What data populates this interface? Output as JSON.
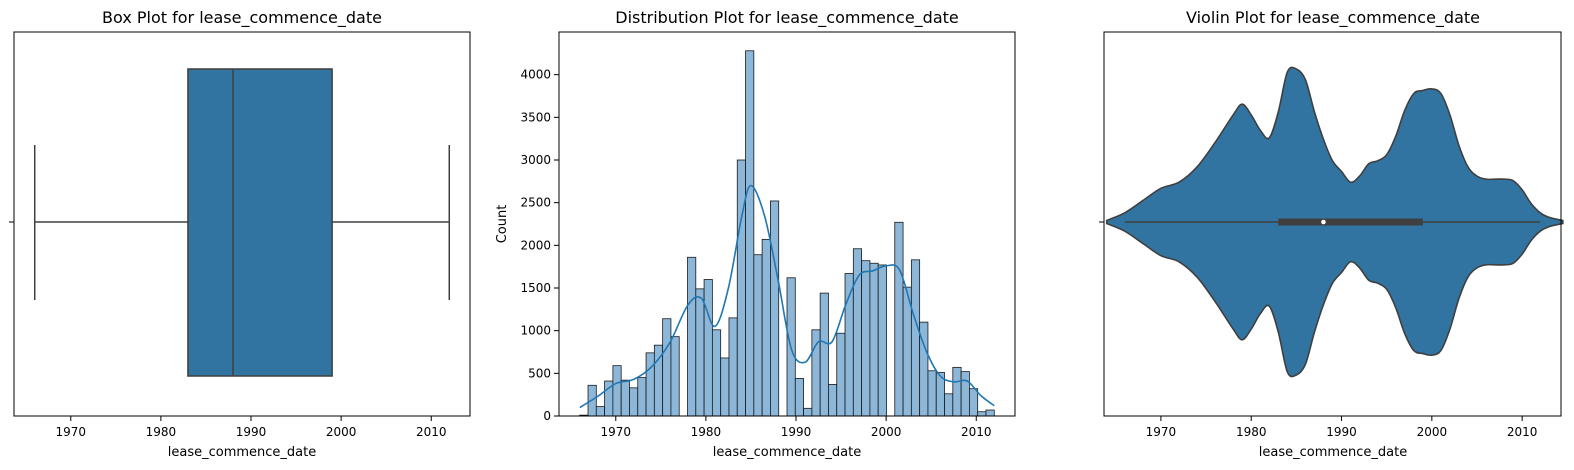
{
  "chart_data": [
    {
      "type": "box",
      "title": "Box Plot for lease_commence_date",
      "xlabel": "lease_commence_date",
      "ylabel": "",
      "xlim": [
        1963.7,
        2014.3
      ],
      "xticks": [
        1970,
        1980,
        1990,
        2000,
        2010
      ],
      "xtick_labels": [
        "1970",
        "1980",
        "1990",
        "2000",
        "2010"
      ],
      "stats": {
        "whisker_low": 1966,
        "q1": 1983,
        "median": 1988,
        "q3": 1999,
        "whisker_high": 2012
      },
      "color": "#3274a1",
      "line_color": "#3f3f3f"
    },
    {
      "type": "bar",
      "title": "Distribution Plot for lease_commence_date",
      "xlabel": "lease_commence_date",
      "ylabel": "Count",
      "xlim": [
        1963.7,
        2014.3
      ],
      "ylim": [
        0,
        4500
      ],
      "xticks": [
        1970,
        1980,
        1990,
        2000,
        2010
      ],
      "xtick_labels": [
        "1970",
        "1980",
        "1990",
        "2000",
        "2010"
      ],
      "yticks": [
        0,
        500,
        1000,
        1500,
        2000,
        2500,
        3000,
        3500,
        4000
      ],
      "ytick_labels": [
        "0",
        "500",
        "1000",
        "1500",
        "2000",
        "2500",
        "3000",
        "3500",
        "4000"
      ],
      "bin_start": 1966,
      "bin_width": 0.92,
      "counts": [
        10,
        360,
        110,
        410,
        590,
        420,
        330,
        450,
        740,
        830,
        1140,
        930,
        0,
        1860,
        1490,
        1600,
        1010,
        680,
        1150,
        3000,
        4280,
        1890,
        2070,
        2520,
        0,
        1620,
        440,
        90,
        1010,
        1440,
        370,
        970,
        1670,
        1960,
        1820,
        1790,
        1770,
        0,
        2270,
        1510,
        1830,
        1100,
        530,
        510,
        260,
        570,
        520,
        320,
        50,
        70
      ],
      "kde_x": [
        1966,
        1968,
        1970,
        1972,
        1974,
        1976,
        1978,
        1979.5,
        1981,
        1982.5,
        1984,
        1985,
        1986.5,
        1988,
        1989.5,
        1991,
        1992.5,
        1994,
        1995.5,
        1997,
        1998.5,
        2000,
        2001.5,
        2003,
        2004.5,
        2006,
        2007.5,
        2009,
        2010.5,
        2012
      ],
      "kde_y": [
        100,
        230,
        380,
        430,
        580,
        860,
        1300,
        1380,
        1050,
        1500,
        2350,
        2700,
        2350,
        1600,
        780,
        630,
        870,
        870,
        1300,
        1650,
        1700,
        1760,
        1710,
        1200,
        750,
        470,
        400,
        410,
        240,
        120
      ],
      "bar_color": "#8db7d8",
      "kde_color": "#1f77b4"
    },
    {
      "type": "violin",
      "title": "Violin Plot for lease_commence_date",
      "xlabel": "lease_commence_date",
      "ylabel": "",
      "xlim": [
        1963.7,
        2014.3
      ],
      "xticks": [
        1970,
        1980,
        1990,
        2000,
        2010
      ],
      "xtick_labels": [
        "1970",
        "1980",
        "1990",
        "2000",
        "2010"
      ],
      "density_x": [
        1964,
        1966,
        1968,
        1970,
        1972,
        1974,
        1976,
        1978,
        1979,
        1980,
        1981,
        1982,
        1983,
        1984,
        1985,
        1986,
        1987,
        1988,
        1989,
        1990,
        1991,
        1992,
        1993,
        1994,
        1995,
        1996,
        1997,
        1998,
        1999,
        2000,
        2001,
        2002,
        2003,
        2004,
        2005,
        2006,
        2007,
        2008,
        2009,
        2010,
        2011,
        2012,
        2013,
        2014.5
      ],
      "density": [
        0.01,
        0.06,
        0.14,
        0.22,
        0.26,
        0.36,
        0.52,
        0.7,
        0.77,
        0.7,
        0.6,
        0.55,
        0.72,
        0.98,
        1.0,
        0.93,
        0.72,
        0.54,
        0.4,
        0.33,
        0.26,
        0.3,
        0.38,
        0.4,
        0.44,
        0.56,
        0.73,
        0.84,
        0.86,
        0.87,
        0.84,
        0.7,
        0.5,
        0.36,
        0.3,
        0.28,
        0.28,
        0.28,
        0.27,
        0.21,
        0.12,
        0.06,
        0.03,
        0.01
      ],
      "stats": {
        "whisker_low": 1966,
        "q1": 1983,
        "median": 1988,
        "q3": 1999,
        "whisker_high": 2012
      },
      "color": "#3274a1",
      "line_color": "#3f3f3f"
    }
  ]
}
